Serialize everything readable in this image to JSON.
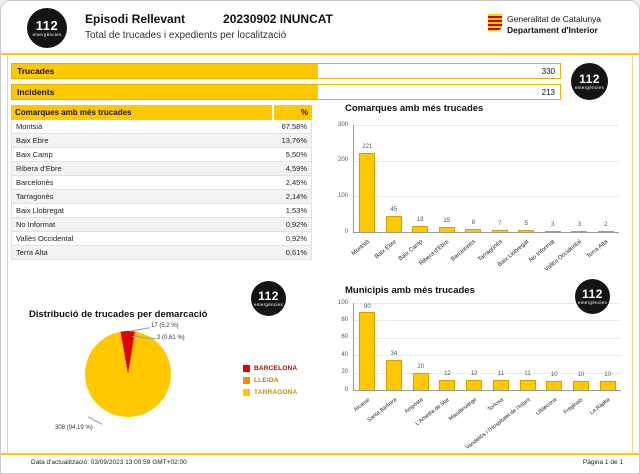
{
  "logo112": {
    "number": "112",
    "caption": "emergències"
  },
  "header": {
    "title": "Episodi Rellevant",
    "episode": "20230902 INUNCAT",
    "subtitle": "Total de trucades i expedients per localització",
    "org_line1": "Generalitat de Catalunya",
    "org_line2": "Departament d'Interior"
  },
  "summary": {
    "rows": [
      {
        "label": "Trucades",
        "value": "330"
      },
      {
        "label": "Incidents",
        "value": "213"
      }
    ]
  },
  "table": {
    "header": "Comarques amb més trucades",
    "pct_header": "%",
    "rows": [
      {
        "name": "Montsià",
        "pct": "67,58%"
      },
      {
        "name": "Baix Ebre",
        "pct": "13,76%"
      },
      {
        "name": "Baix Camp",
        "pct": "5,50%"
      },
      {
        "name": "Ribera d'Ebre",
        "pct": "4,59%"
      },
      {
        "name": "Barcelonès",
        "pct": "2,45%"
      },
      {
        "name": "Tarragonès",
        "pct": "2,14%"
      },
      {
        "name": "Baix Llobregat",
        "pct": "1,53%"
      },
      {
        "name": "No Informat",
        "pct": "0,92%"
      },
      {
        "name": "Vallès Occidental",
        "pct": "0,92%"
      },
      {
        "name": "Terra Alta",
        "pct": "0,61%"
      }
    ]
  },
  "chart_data": [
    {
      "type": "bar",
      "title": "Comarques amb més trucades",
      "categories": [
        "Montsià",
        "Baix Ebre",
        "Baix Camp",
        "Ribera d'Ebre",
        "Barcelonès",
        "Tarragonès",
        "Baix Llobregat",
        "No Informat",
        "Vallès Occidental",
        "Terra Alta"
      ],
      "values": [
        221,
        45,
        18,
        15,
        8,
        7,
        5,
        3,
        3,
        2
      ],
      "ylim": [
        0,
        300
      ],
      "yticks": [
        0,
        100,
        200,
        300
      ],
      "bar_color": "#FFC800",
      "grid": true,
      "legend": false
    },
    {
      "type": "pie",
      "title": "Distribució de trucades per demarcació",
      "slices": [
        {
          "label": "BARCELONA",
          "value": 17,
          "pct": "5,2 %",
          "annotation": "17 (5,2 %)",
          "color": "#E00000",
          "label_color": "#B30000"
        },
        {
          "label": "LLEIDA",
          "value": 2,
          "pct": "0,61 %",
          "annotation": "2 (0,61 %)",
          "color": "#FF8A00",
          "label_color": "#D96F00"
        },
        {
          "label": "TARRAGONA",
          "value": 308,
          "pct": "94,19 %",
          "annotation": "308 (94,19 %)",
          "color": "#FFC800",
          "label_color": "#C09400"
        }
      ],
      "legend_position": "right"
    },
    {
      "type": "bar",
      "title": "Municipis amb més trucades",
      "categories": [
        "Alcanar",
        "Santa Bàrbara",
        "Amposta",
        "L'Ametlla de Mar",
        "Masdenverge",
        "Tortosa",
        "Vandellòs i l'Hospitalet de l'Infant",
        "Ulldecona",
        "Freginals",
        "La Ràpita"
      ],
      "values": [
        90,
        34,
        20,
        12,
        12,
        11,
        11,
        10,
        10,
        10
      ],
      "ylim": [
        0,
        100
      ],
      "yticks": [
        0,
        20,
        40,
        60,
        80,
        100
      ],
      "bar_color": "#FFC800",
      "grid": true,
      "legend": false
    }
  ],
  "footer": {
    "updated": "Data d'actualització: 03/09/2023  13:00:59 GMT+02:00",
    "page": "Pàgina 1 de 1"
  }
}
